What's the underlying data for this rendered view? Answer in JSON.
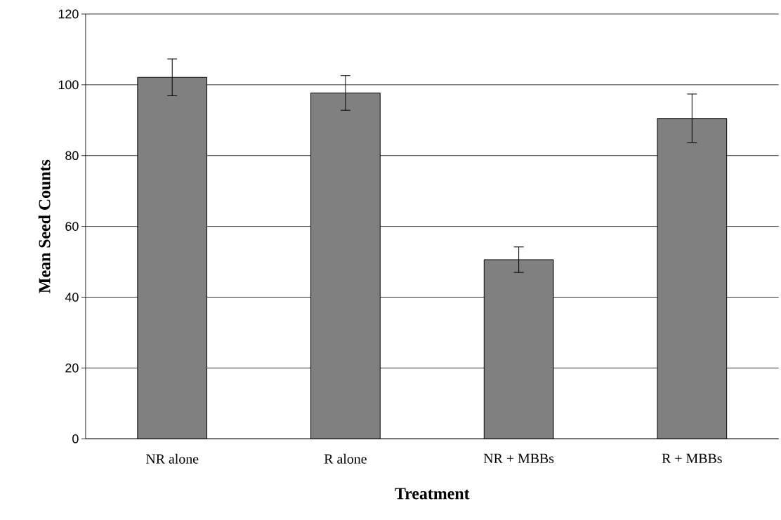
{
  "chart_data": {
    "type": "bar",
    "xlabel": "Treatment",
    "ylabel": "Mean Seed Counts",
    "categories": [
      "NR alone",
      "R alone",
      "NR + MBBs",
      "R + MBBs"
    ],
    "values": [
      102.1,
      97.7,
      50.6,
      90.5
    ],
    "errors": [
      5.2,
      4.9,
      3.6,
      6.9
    ],
    "color": "#808080",
    "ylim": [
      0,
      120
    ],
    "yticks": [
      0,
      20,
      40,
      60,
      80,
      100,
      120
    ],
    "grid": "y"
  }
}
